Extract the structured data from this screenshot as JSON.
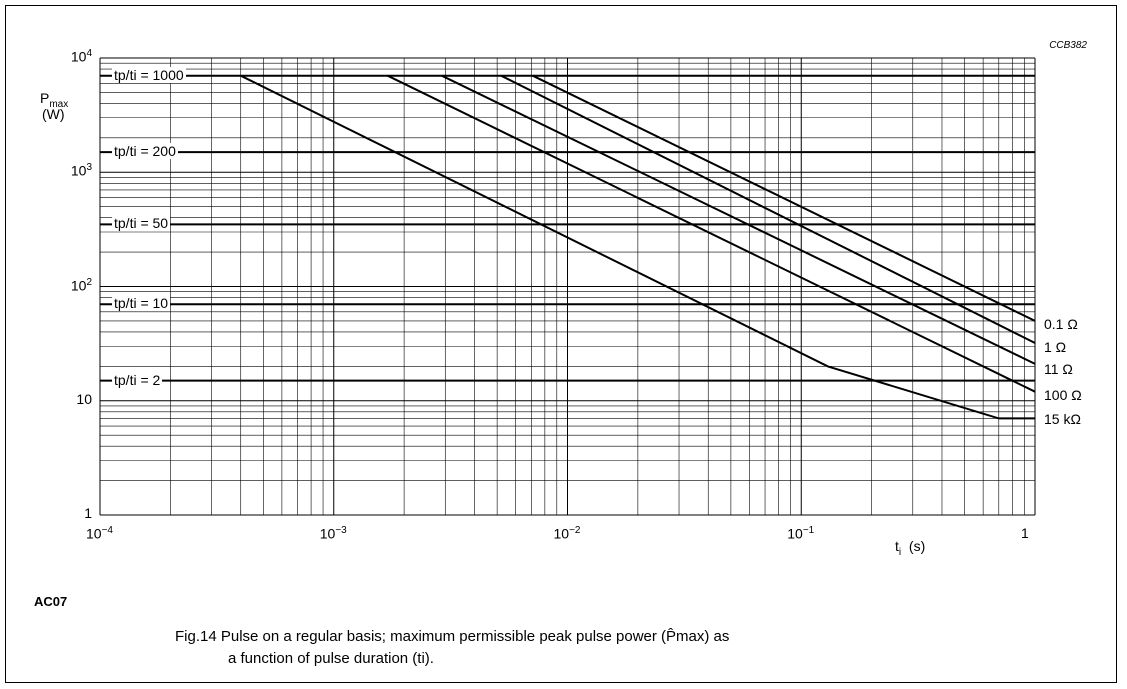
{
  "figure_code": "CCB382",
  "block_label": "AC07",
  "caption_line1": "Fig.14  Pulse on a regular basis; maximum permissible peak pulse power (P̂max) as",
  "caption_line2": "a function of pulse duration (ti).",
  "chart_data": {
    "type": "line",
    "x_scale": "log",
    "y_scale": "log",
    "xlim": [
      0.0001,
      1
    ],
    "ylim": [
      1,
      10000
    ],
    "grid": true,
    "xlabel": "ti  (s)",
    "ylabel": "Pmax (W)",
    "x_ticks": [
      "10−4",
      "10−3",
      "10−2",
      "10−1",
      "1"
    ],
    "y_ticks": [
      "104",
      "103",
      "102",
      "10",
      "1"
    ],
    "ratio_lines": [
      {
        "label": "tp/ti = 1000",
        "value": 7000
      },
      {
        "label": "tp/ti = 200",
        "value": 1500
      },
      {
        "label": "tp/ti = 50",
        "value": 350
      },
      {
        "label": "tp/ti = 10",
        "value": 70
      },
      {
        "label": "tp/ti = 2",
        "value": 15
      }
    ],
    "series": [
      {
        "name": "0.1 Ω",
        "x": [
          0.0071,
          1.0
        ],
        "y": [
          7000,
          50
        ]
      },
      {
        "name": "1 Ω",
        "x": [
          0.0052,
          1.0
        ],
        "y": [
          7000,
          32
        ]
      },
      {
        "name": "11 Ω",
        "x": [
          0.0029,
          1.0
        ],
        "y": [
          7000,
          21
        ]
      },
      {
        "name": "100 Ω",
        "x": [
          0.0017,
          1.0
        ],
        "y": [
          7000,
          12
        ]
      },
      {
        "name": "15 kΩ",
        "x": [
          0.0004,
          0.13,
          0.7,
          1.0
        ],
        "y": [
          7000,
          20,
          7,
          7
        ]
      }
    ]
  }
}
